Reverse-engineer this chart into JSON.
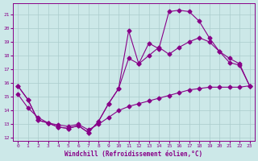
{
  "xlabel": "Windchill (Refroidissement éolien,°C)",
  "xlim": [
    -0.5,
    23.5
  ],
  "ylim": [
    11.8,
    21.8
  ],
  "xticks": [
    0,
    1,
    2,
    3,
    4,
    5,
    6,
    7,
    8,
    9,
    10,
    11,
    12,
    13,
    14,
    15,
    16,
    17,
    18,
    19,
    20,
    21,
    22,
    23
  ],
  "yticks": [
    12,
    13,
    14,
    15,
    16,
    17,
    18,
    19,
    20,
    21
  ],
  "bg_color": "#cce8e8",
  "grid_color": "#aacccc",
  "line_color": "#880088",
  "line1_x": [
    0,
    1,
    2,
    3,
    4,
    5,
    6,
    7,
    8,
    9,
    10,
    11,
    12,
    13,
    14,
    15,
    16,
    17,
    18,
    19,
    20,
    21,
    22,
    23
  ],
  "line1_y": [
    15.8,
    14.8,
    13.3,
    13.1,
    12.8,
    12.7,
    12.9,
    12.4,
    13.2,
    14.5,
    15.6,
    17.8,
    17.4,
    18.0,
    18.6,
    18.1,
    18.6,
    19.0,
    19.3,
    19.0,
    18.3,
    17.8,
    17.4,
    15.8
  ],
  "line2_x": [
    0,
    1,
    2,
    3,
    4,
    5,
    6,
    7,
    8,
    9,
    10,
    11,
    12,
    13,
    14,
    15,
    16,
    17,
    18,
    19,
    20,
    21,
    22,
    23
  ],
  "line2_y": [
    15.8,
    14.8,
    13.3,
    13.1,
    12.8,
    12.7,
    12.9,
    12.4,
    13.2,
    14.5,
    15.6,
    19.8,
    17.4,
    18.9,
    18.5,
    21.2,
    21.3,
    21.2,
    20.5,
    19.3,
    18.3,
    17.5,
    17.3,
    15.8
  ],
  "line3_x": [
    0,
    1,
    2,
    3,
    4,
    5,
    6,
    7,
    8,
    9,
    10,
    11,
    12,
    13,
    14,
    15,
    16,
    17,
    18,
    19,
    20,
    21,
    22,
    23
  ],
  "line3_y": [
    15.2,
    14.2,
    13.5,
    13.1,
    12.95,
    12.85,
    13.0,
    12.6,
    13.0,
    13.5,
    14.0,
    14.3,
    14.5,
    14.7,
    14.9,
    15.1,
    15.3,
    15.5,
    15.6,
    15.7,
    15.7,
    15.7,
    15.7,
    15.8
  ],
  "marker": "D",
  "marker_size": 2.5,
  "line_width": 0.8
}
